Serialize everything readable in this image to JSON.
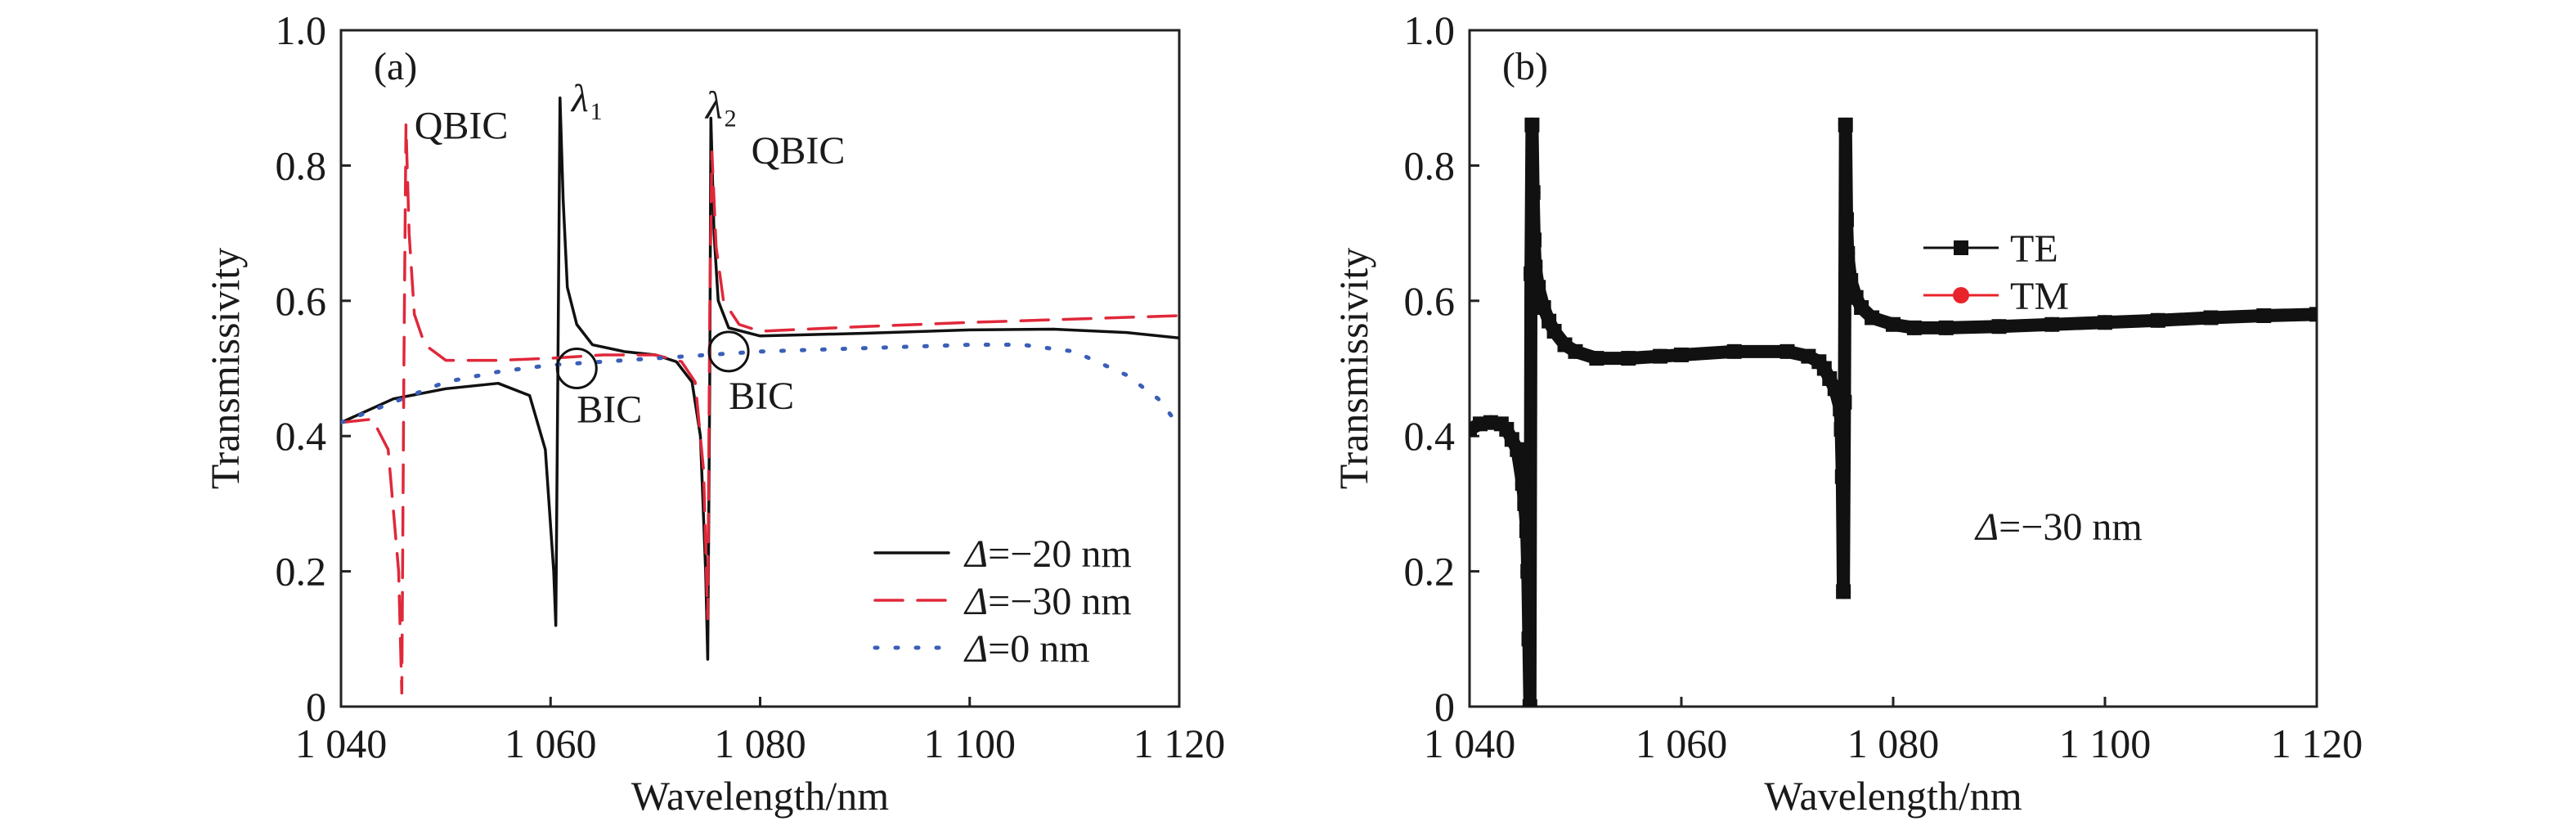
{
  "chart_data": [
    {
      "type": "line",
      "panel_label": "(a)",
      "xlabel": "Wavelength/nm",
      "ylabel": "Transmissivity",
      "xlim": [
        1040,
        1120
      ],
      "ylim": [
        0,
        1.0
      ],
      "xticks": [
        1040,
        1060,
        1080,
        1100,
        1120
      ],
      "xtick_labels": [
        "1 040",
        "1 060",
        "1 080",
        "1 100",
        "1 120"
      ],
      "yticks": [
        0,
        0.2,
        0.4,
        0.6,
        0.8,
        1.0
      ],
      "ytick_labels": [
        "0",
        "0.2",
        "0.4",
        "0.6",
        "0.8",
        "1.0"
      ],
      "grid": false,
      "legend_position": "bottom-right",
      "series": [
        {
          "name": "Δ=−20 nm",
          "legend_prefix": "Δ",
          "legend_rest": "=−20 nm",
          "color": "#111111",
          "style": "solid",
          "x": [
            1040,
            1045,
            1050,
            1055,
            1058,
            1059.5,
            1060.3,
            1060.5,
            1060.7,
            1060.9,
            1061.2,
            1061.6,
            1062.5,
            1064,
            1067,
            1070,
            1072,
            1073.5,
            1074.3,
            1074.8,
            1075,
            1075.2,
            1075.3,
            1075.6,
            1076,
            1077,
            1080,
            1090,
            1100,
            1108,
            1115,
            1120
          ],
          "y": [
            0.42,
            0.455,
            0.47,
            0.478,
            0.46,
            0.38,
            0.2,
            0.12,
            0.5,
            0.9,
            0.75,
            0.62,
            0.565,
            0.535,
            0.525,
            0.52,
            0.51,
            0.48,
            0.4,
            0.2,
            0.07,
            0.5,
            0.87,
            0.7,
            0.6,
            0.56,
            0.548,
            0.552,
            0.557,
            0.558,
            0.553,
            0.545
          ]
        },
        {
          "name": "Δ=−30 nm",
          "legend_prefix": "Δ",
          "legend_rest": "=−30 nm",
          "color": "#e0283a",
          "style": "dashed",
          "x": [
            1040,
            1043,
            1044.5,
            1045.5,
            1045.8,
            1046,
            1046.2,
            1046.5,
            1047,
            1048,
            1050,
            1055,
            1060,
            1065,
            1070,
            1072.5,
            1073.8,
            1074.6,
            1075,
            1075.2,
            1075.4,
            1075.8,
            1076.5,
            1078,
            1080,
            1090,
            1100,
            1110,
            1120
          ],
          "y": [
            0.42,
            0.425,
            0.38,
            0.2,
            0.02,
            0.5,
            0.86,
            0.7,
            0.58,
            0.535,
            0.512,
            0.512,
            0.515,
            0.52,
            0.52,
            0.51,
            0.48,
            0.35,
            0.13,
            0.6,
            0.82,
            0.68,
            0.6,
            0.565,
            0.555,
            0.562,
            0.568,
            0.573,
            0.578
          ]
        },
        {
          "name": "Δ=0 nm",
          "legend_prefix": "Δ",
          "legend_rest": "=0 nm",
          "color": "#3a5fb8",
          "style": "dotted",
          "x": [
            1040,
            1045,
            1050,
            1055,
            1060,
            1070,
            1080,
            1090,
            1100,
            1105,
            1110,
            1115,
            1118,
            1120
          ],
          "y": [
            0.42,
            0.45,
            0.48,
            0.495,
            0.505,
            0.515,
            0.525,
            0.53,
            0.535,
            0.535,
            0.525,
            0.49,
            0.455,
            0.415
          ]
        }
      ],
      "annotations": [
        {
          "text": "QBIC",
          "x": 1047,
          "y": 0.84
        },
        {
          "text": "λ",
          "sub": "1",
          "x": 1062,
          "y": 0.88
        },
        {
          "text": "λ",
          "sub": "2",
          "x": 1074.8,
          "y": 0.87
        },
        {
          "text": "QBIC",
          "x": 1076.5,
          "y": 0.82
        },
        {
          "text": "BIC",
          "x": 1062.5,
          "y": 0.42,
          "circle": [
            1062.5,
            0.5
          ]
        },
        {
          "text": "BIC",
          "x": 1077,
          "y": 0.44,
          "circle": [
            1077,
            0.525
          ]
        }
      ]
    },
    {
      "type": "line",
      "panel_label": "(b)",
      "xlabel": "Wavelength/nm",
      "ylabel": "Transmissivity",
      "xlim": [
        1040,
        1120
      ],
      "ylim": [
        0,
        1.0
      ],
      "xticks": [
        1040,
        1060,
        1080,
        1100,
        1120
      ],
      "xtick_labels": [
        "1 040",
        "1 060",
        "1 080",
        "1 100",
        "1 120"
      ],
      "yticks": [
        0,
        0.2,
        0.4,
        0.6,
        0.8,
        1.0
      ],
      "ytick_labels": [
        "0",
        "0.2",
        "0.4",
        "0.6",
        "0.8",
        "1.0"
      ],
      "grid": false,
      "legend_position": "upper-center",
      "note": {
        "prefix": "Δ",
        "rest": "=−30 nm"
      },
      "x": [
        1040,
        1041,
        1042,
        1043,
        1043.5,
        1044,
        1044.5,
        1045,
        1045.2,
        1045.4,
        1045.5,
        1045.6,
        1045.7,
        1045.8,
        1045.9,
        1046,
        1046.1,
        1046.2,
        1046.5,
        1047,
        1047.5,
        1048,
        1049,
        1050,
        1052,
        1055,
        1058,
        1060,
        1065,
        1070,
        1072,
        1073,
        1073.5,
        1074,
        1074.5,
        1075,
        1075.1,
        1075.2,
        1075.3,
        1075.4,
        1075.5,
        1075.6,
        1075.7,
        1076,
        1076.5,
        1077,
        1078,
        1080,
        1082,
        1085,
        1090,
        1095,
        1100,
        1105,
        1110,
        1115,
        1120
      ],
      "series": [
        {
          "name": "TE",
          "color": "#111111",
          "marker": "square",
          "y": [
            0.41,
            0.418,
            0.42,
            0.418,
            0.41,
            0.395,
            0.38,
            0.33,
            0.3,
            0.26,
            0.2,
            0.1,
            0.0,
            0.64,
            0.86,
            0.76,
            0.69,
            0.65,
            0.62,
            0.59,
            0.57,
            0.555,
            0.535,
            0.525,
            0.515,
            0.515,
            0.518,
            0.52,
            0.525,
            0.525,
            0.518,
            0.51,
            0.5,
            0.485,
            0.47,
            0.44,
            0.41,
            0.34,
            0.17,
            0.45,
            0.86,
            0.72,
            0.67,
            0.63,
            0.605,
            0.59,
            0.575,
            0.565,
            0.56,
            0.56,
            0.562,
            0.565,
            0.568,
            0.571,
            0.575,
            0.578,
            0.58
          ]
        },
        {
          "name": "TM",
          "color": "#e8232b",
          "marker": "circle",
          "y": [
            0.41,
            0.418,
            0.42,
            0.418,
            0.41,
            0.395,
            0.38,
            0.33,
            0.3,
            0.26,
            0.2,
            0.1,
            0.0,
            0.64,
            0.86,
            0.76,
            0.69,
            0.65,
            0.62,
            0.59,
            0.57,
            0.555,
            0.535,
            0.525,
            0.515,
            0.515,
            0.518,
            0.52,
            0.525,
            0.525,
            0.518,
            0.51,
            0.5,
            0.485,
            0.47,
            0.44,
            0.41,
            0.34,
            0.17,
            0.45,
            0.86,
            0.72,
            0.67,
            0.63,
            0.605,
            0.59,
            0.575,
            0.565,
            0.56,
            0.56,
            0.562,
            0.565,
            0.568,
            0.571,
            0.575,
            0.578,
            0.58
          ]
        }
      ]
    }
  ]
}
